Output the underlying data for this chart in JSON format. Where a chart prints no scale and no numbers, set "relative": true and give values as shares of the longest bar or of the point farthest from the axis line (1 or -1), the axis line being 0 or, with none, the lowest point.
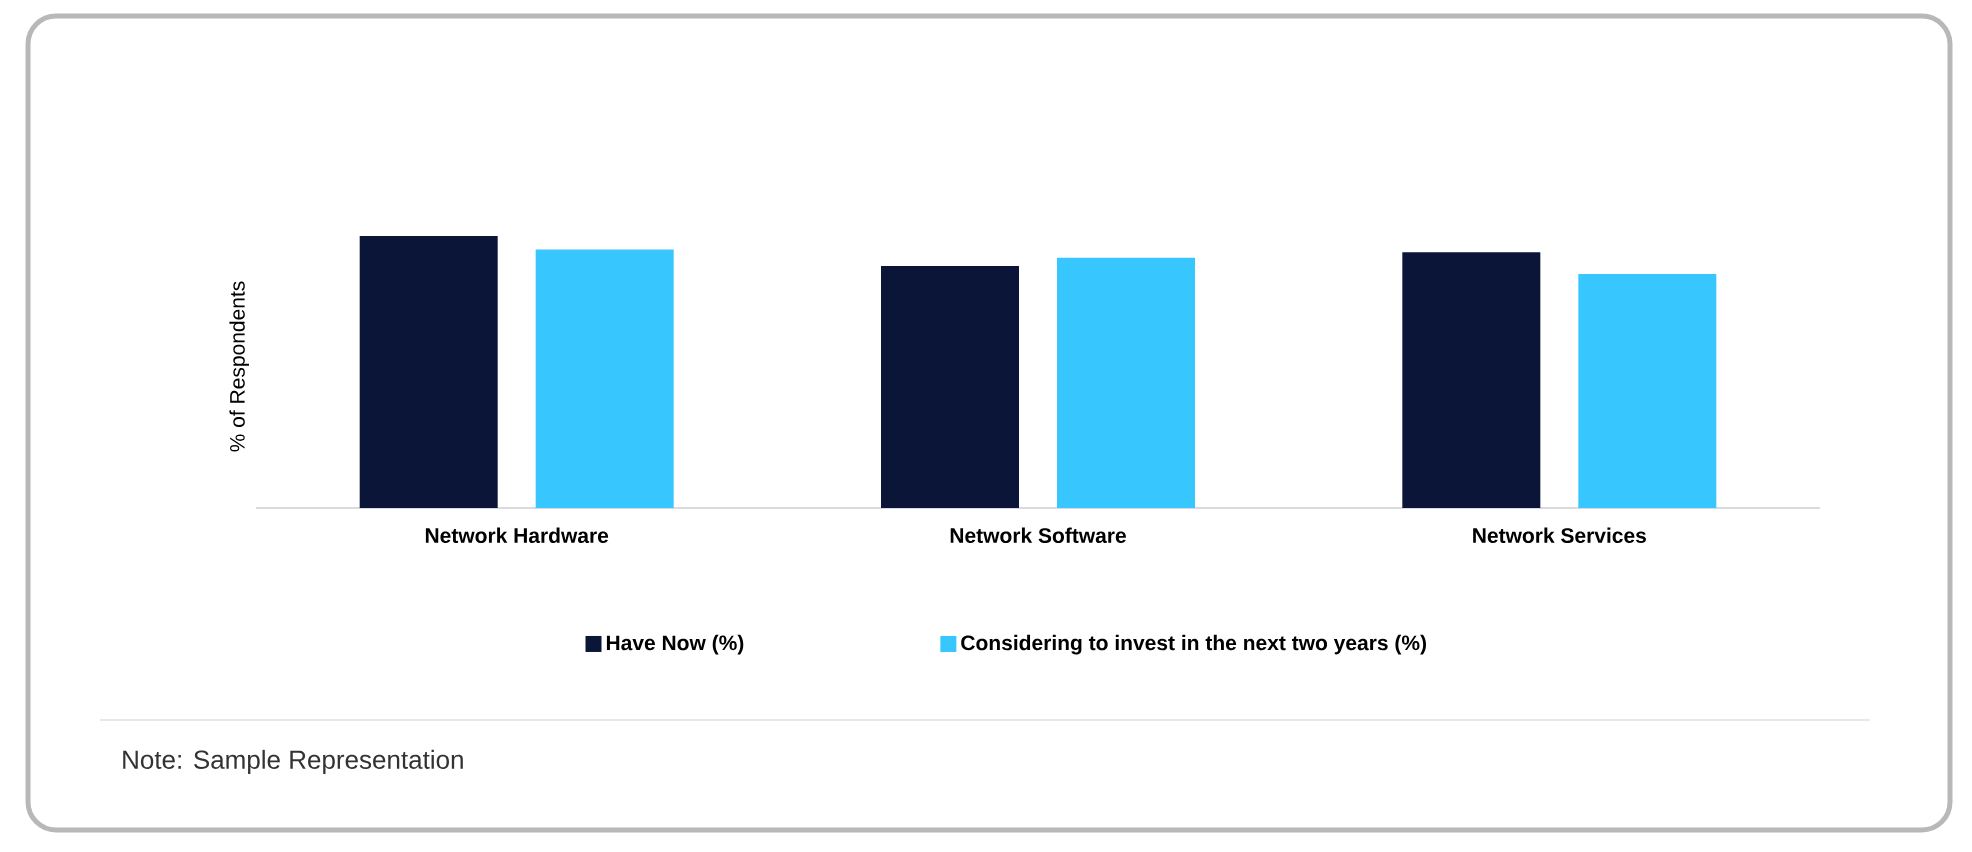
{
  "chart_data": {
    "type": "bar",
    "categories": [
      "Network Hardware",
      "Network Software",
      "Network Services"
    ],
    "ylabel": "% of Respondents",
    "relative": true,
    "series": [
      {
        "name": "Have Now (%)",
        "color": "#0b1538",
        "values": [
          1.0,
          0.89,
          0.94
        ]
      },
      {
        "name": "Considering to invest in the next two years (%)",
        "color": "#38c6fe",
        "values": [
          0.95,
          0.92,
          0.86
        ]
      }
    ],
    "legend": "bottom",
    "annotations": [
      "Note: Sample Representation"
    ]
  }
}
